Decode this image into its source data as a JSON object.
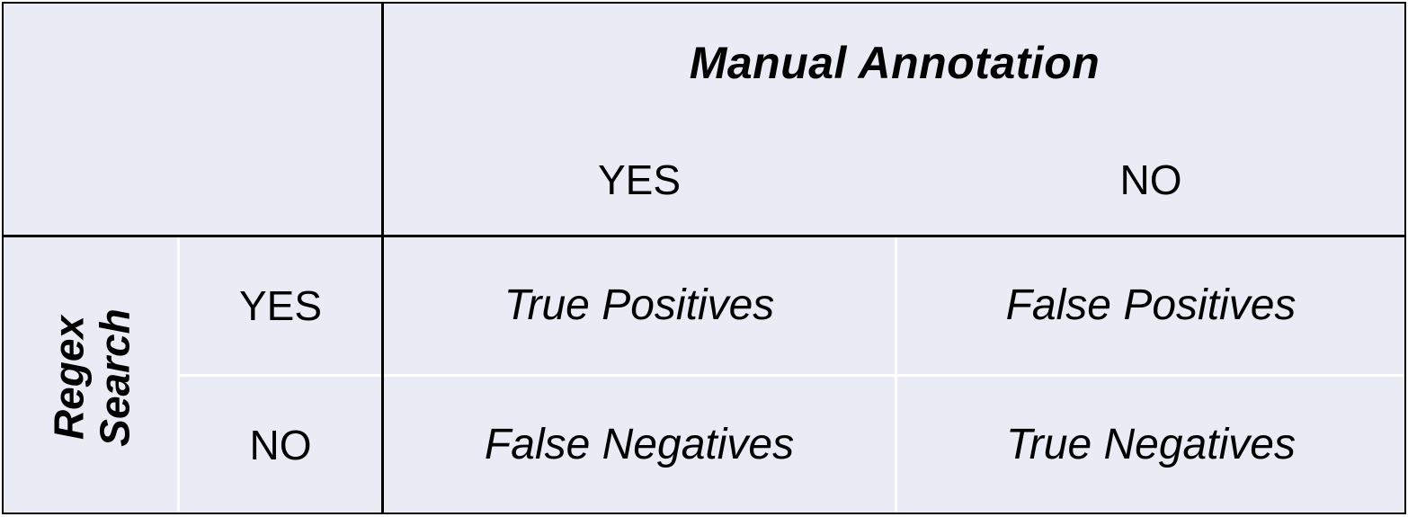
{
  "header": {
    "column_group": "Manual Annotation",
    "col_yes": "YES",
    "col_no": "NO"
  },
  "rows": {
    "group_line1": "Regex",
    "group_line2": "Search",
    "row_yes": "YES",
    "row_no": "NO"
  },
  "cells": {
    "tp": "True Positives",
    "fp": "False Positives",
    "fn": "False Negatives",
    "tn": "True Negatives"
  }
}
